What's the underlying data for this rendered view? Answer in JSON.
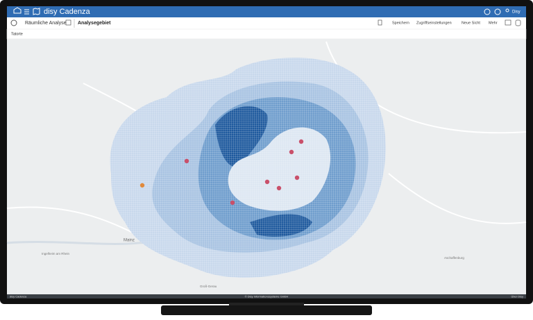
{
  "app": {
    "title": "disy Cadenza",
    "user": "Disy"
  },
  "toolbar": {
    "breadcrumb": "Räumliche Analyse",
    "view": "Analysegebiet",
    "actions": [
      "Speichern",
      "Zugriffseinstellungen",
      "Neue Sicht",
      "Mehr"
    ]
  },
  "layer": "Tatorte",
  "map_labels": [
    "Mainz",
    "Ingelheim am Rhein",
    "Groß-Gerau",
    "Aschaffenburg"
  ],
  "footer": {
    "left": "disy Cadenza",
    "center": "© Disy Informationssysteme GmbH",
    "right": "Über Disy"
  }
}
